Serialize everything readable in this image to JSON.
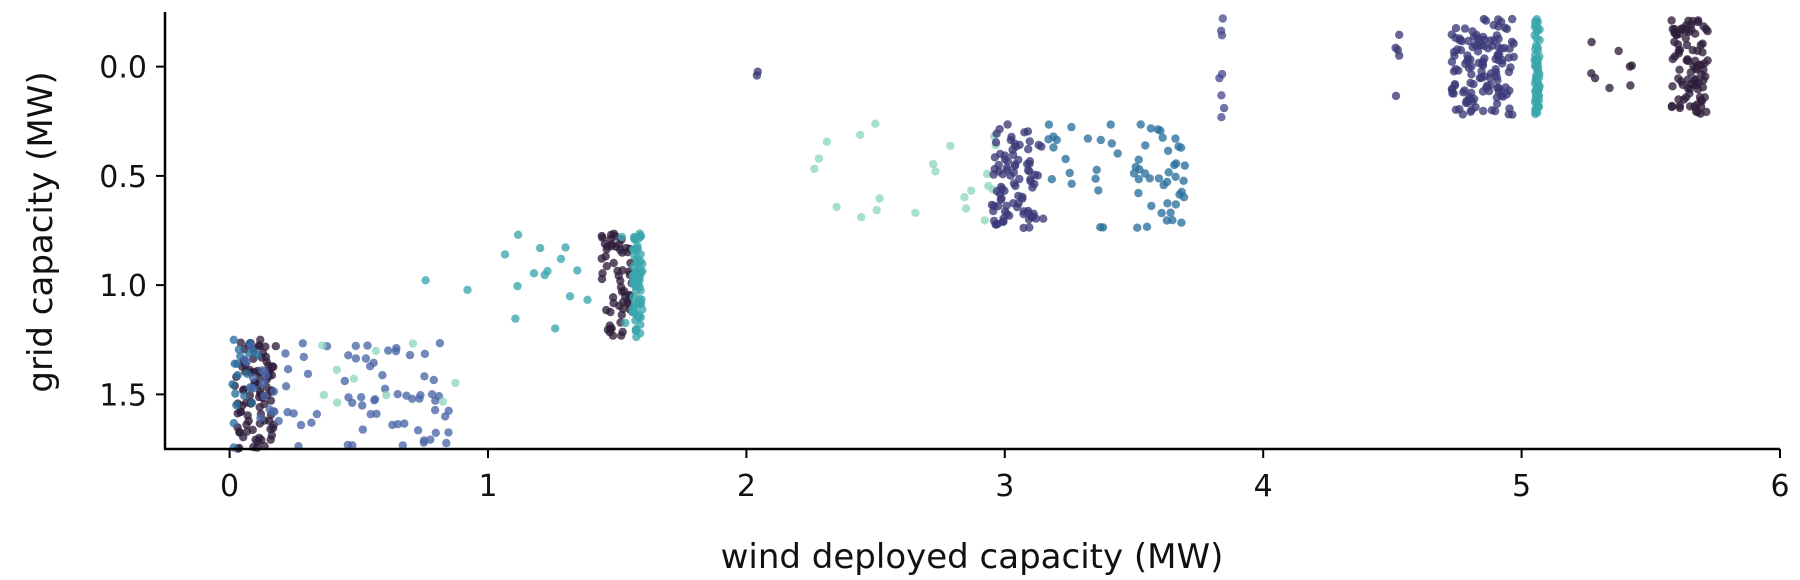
{
  "chart_data": {
    "type": "scatter",
    "title": "",
    "xlabel": "wind deployed capacity (MW)",
    "ylabel": "grid capacity (MW)",
    "xlim": [
      -0.25,
      6.0
    ],
    "ylim": [
      -0.25,
      1.75
    ],
    "y_inverted": true,
    "x_ticks": [
      "0",
      "1",
      "2",
      "3",
      "4",
      "5",
      "6"
    ],
    "y_ticks": [
      "0.0",
      "0.5",
      "1.0",
      "1.5"
    ],
    "grid": false,
    "legend": "none",
    "clusters": [
      {
        "x": 0.1,
        "x_spread": 0.08,
        "y": 1.5,
        "y_spread": 0.25,
        "n": 90,
        "color": "#2e1e3b"
      },
      {
        "x": 0.06,
        "x_spread": 0.05,
        "y": 1.5,
        "y_spread": 0.25,
        "n": 20,
        "color": "#2a6f9e"
      },
      {
        "x": 0.45,
        "x_spread": 0.4,
        "y": 1.5,
        "y_spread": 0.24,
        "n": 80,
        "color": "#4a67a8"
      },
      {
        "x": 0.6,
        "x_spread": 0.3,
        "y": 1.4,
        "y_spread": 0.15,
        "n": 10,
        "color": "#8fd8bd"
      },
      {
        "x": 1.5,
        "x_spread": 0.06,
        "y": 1.0,
        "y_spread": 0.24,
        "n": 60,
        "color": "#2e1e3b"
      },
      {
        "x": 1.58,
        "x_spread": 0.02,
        "y": 1.0,
        "y_spread": 0.24,
        "n": 70,
        "color": "#3aa6ad"
      },
      {
        "x": 1.2,
        "x_spread": 0.45,
        "y": 1.0,
        "y_spread": 0.24,
        "n": 18,
        "color": "#3aa6ad"
      },
      {
        "x": 2.6,
        "x_spread": 0.4,
        "y": 0.5,
        "y_spread": 0.24,
        "n": 22,
        "color": "#8fd8bd"
      },
      {
        "x": 3.05,
        "x_spread": 0.1,
        "y": 0.5,
        "y_spread": 0.24,
        "n": 90,
        "color": "#3b3a79"
      },
      {
        "x": 3.3,
        "x_spread": 0.15,
        "y": 0.5,
        "y_spread": 0.24,
        "n": 20,
        "color": "#2a6f9e"
      },
      {
        "x": 3.6,
        "x_spread": 0.1,
        "y": 0.5,
        "y_spread": 0.24,
        "n": 40,
        "color": "#2a6f9e"
      },
      {
        "x": 3.84,
        "x_spread": 0.01,
        "y": 0.0,
        "y_spread": 0.24,
        "n": 8,
        "color": "#4a4c8d"
      },
      {
        "x": 4.85,
        "x_spread": 0.12,
        "y": 0.0,
        "y_spread": 0.22,
        "n": 130,
        "color": "#3b3a79"
      },
      {
        "x": 5.06,
        "x_spread": 0.01,
        "y": 0.0,
        "y_spread": 0.22,
        "n": 70,
        "color": "#3aa6ad"
      },
      {
        "x": 5.65,
        "x_spread": 0.07,
        "y": 0.0,
        "y_spread": 0.22,
        "n": 90,
        "color": "#2e1e3b"
      },
      {
        "x": 5.35,
        "x_spread": 0.15,
        "y": 0.0,
        "y_spread": 0.12,
        "n": 8,
        "color": "#2e1e3b"
      },
      {
        "x": 4.52,
        "x_spread": 0.01,
        "y": 0.0,
        "y_spread": 0.18,
        "n": 5,
        "color": "#3b3a79"
      },
      {
        "x": 2.04,
        "x_spread": 0.01,
        "y": 0.05,
        "y_spread": 0.12,
        "n": 2,
        "color": "#3b3a79"
      }
    ]
  }
}
